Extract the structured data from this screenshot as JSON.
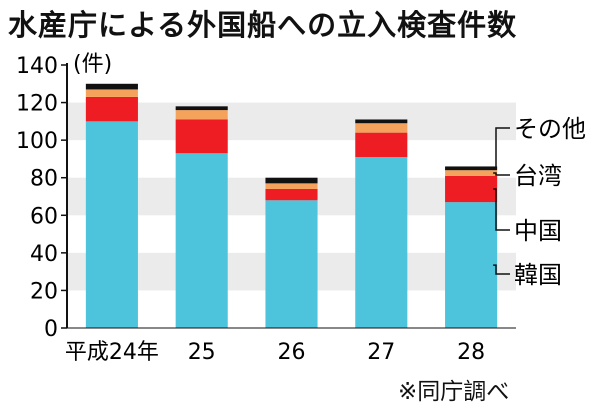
{
  "chart_data": {
    "type": "bar",
    "stacked": true,
    "title": "水産庁による外国船への立入検査件数",
    "unit_label": "(件)",
    "categories": [
      "平成24年",
      "25",
      "26",
      "27",
      "28"
    ],
    "series": [
      {
        "name": "韓国",
        "values": [
          110,
          93,
          68,
          91,
          67
        ],
        "color": "#4dc3dc"
      },
      {
        "name": "中国",
        "values": [
          13,
          18,
          6,
          13,
          14
        ],
        "color": "#ee1c23"
      },
      {
        "name": "台湾",
        "values": [
          4,
          5,
          3,
          5,
          3
        ],
        "color": "#f5a35c"
      },
      {
        "name": "その他",
        "values": [
          3,
          2,
          3,
          2,
          2
        ],
        "color": "#111111"
      }
    ],
    "ylim": [
      0,
      140
    ],
    "yticks": [
      0,
      20,
      40,
      60,
      80,
      100,
      120,
      140
    ],
    "grid": "alternating-bands",
    "band_color": "#ebebeb",
    "legend_position": "right",
    "source": "※同庁調べ"
  }
}
